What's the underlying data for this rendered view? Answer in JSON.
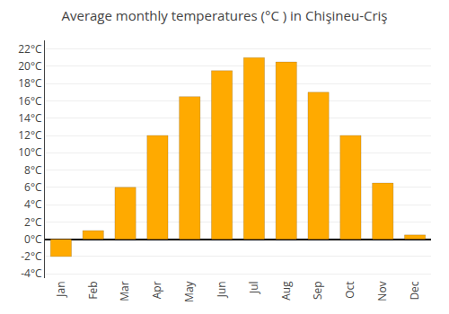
{
  "chart_data": {
    "type": "bar",
    "title": "Average monthly temperatures (°C ) in Chişineu-Criş",
    "categories": [
      "Jan",
      "Feb",
      "Mar",
      "Apr",
      "May",
      "Jun",
      "Jul",
      "Aug",
      "Sep",
      "Oct",
      "Nov",
      "Dec"
    ],
    "values": [
      -2.0,
      1.0,
      6.0,
      12.0,
      16.5,
      19.5,
      21.0,
      20.5,
      17.0,
      12.0,
      6.5,
      0.5
    ],
    "color": "#FFAA00",
    "ylim": [
      -4.5,
      23
    ],
    "yticks": [
      {
        "value": -4,
        "label": "-4°C"
      },
      {
        "value": -2,
        "label": "-2°C"
      },
      {
        "value": 0,
        "label": "0°C"
      },
      {
        "value": 2,
        "label": "2°C"
      },
      {
        "value": 4,
        "label": "4°C"
      },
      {
        "value": 6,
        "label": "6°C"
      },
      {
        "value": 8,
        "label": "8°C"
      },
      {
        "value": 10,
        "label": "10°C"
      },
      {
        "value": 12,
        "label": "12°C"
      },
      {
        "value": 14,
        "label": "14°C"
      },
      {
        "value": 16,
        "label": "16°C"
      },
      {
        "value": 18,
        "label": "18°C"
      },
      {
        "value": 20,
        "label": "20°C"
      },
      {
        "value": 22,
        "label": "22°C"
      }
    ],
    "grid": true
  }
}
